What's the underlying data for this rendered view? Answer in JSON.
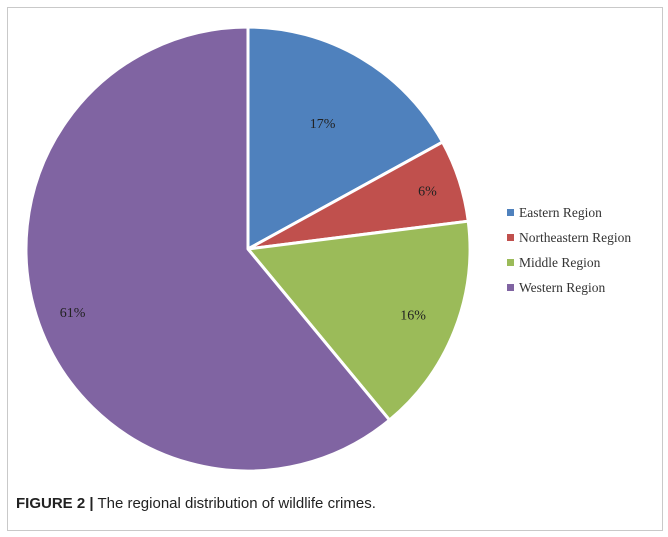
{
  "chart_data": {
    "type": "pie",
    "categories": [
      "Eastern Region",
      "Northeastern Region",
      "Middle Region",
      "Western Region"
    ],
    "values": [
      17,
      6,
      16,
      61
    ],
    "labels": [
      "17%",
      "6%",
      "16%",
      "61%"
    ],
    "colors": [
      "#4f81bd",
      "#c0504d",
      "#9bbb59",
      "#8064a2"
    ],
    "legend_position": "right",
    "start_angle_deg": -90,
    "direction": "clockwise"
  },
  "figure": {
    "caption_label": "FIGURE 2 |",
    "caption_text": " The regional distribution of wildlife crimes."
  }
}
